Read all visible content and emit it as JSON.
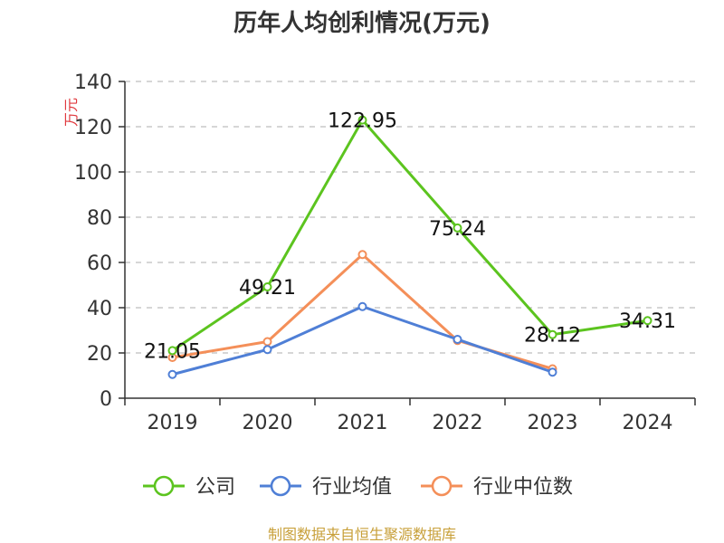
{
  "chart_data": {
    "type": "line",
    "title": "历年人均创利情况(万元)",
    "ylabel": "万元",
    "xlabel": "",
    "categories": [
      "2019",
      "2020",
      "2021",
      "2022",
      "2023",
      "2024"
    ],
    "ylim": [
      0,
      140
    ],
    "yticks": [
      0,
      20,
      40,
      60,
      80,
      100,
      120,
      140
    ],
    "grid": true,
    "legend_position": "bottom",
    "series": [
      {
        "name": "公司",
        "color": "#5cc41f",
        "values": [
          21.05,
          49.21,
          122.95,
          75.24,
          28.12,
          34.31
        ],
        "labels": [
          "21.05",
          "49.21",
          "122.95",
          "75.24",
          "28.12",
          "34.31"
        ]
      },
      {
        "name": "行业均值",
        "color": "#4f7fd6",
        "values": [
          10.5,
          21.5,
          40.5,
          26.0,
          11.5,
          null
        ],
        "labels": null
      },
      {
        "name": "行业中位数",
        "color": "#f48f59",
        "values": [
          18.0,
          25.0,
          63.5,
          25.5,
          13.0,
          null
        ],
        "labels": null
      }
    ],
    "source": "制图数据来自恒生聚源数据库"
  }
}
